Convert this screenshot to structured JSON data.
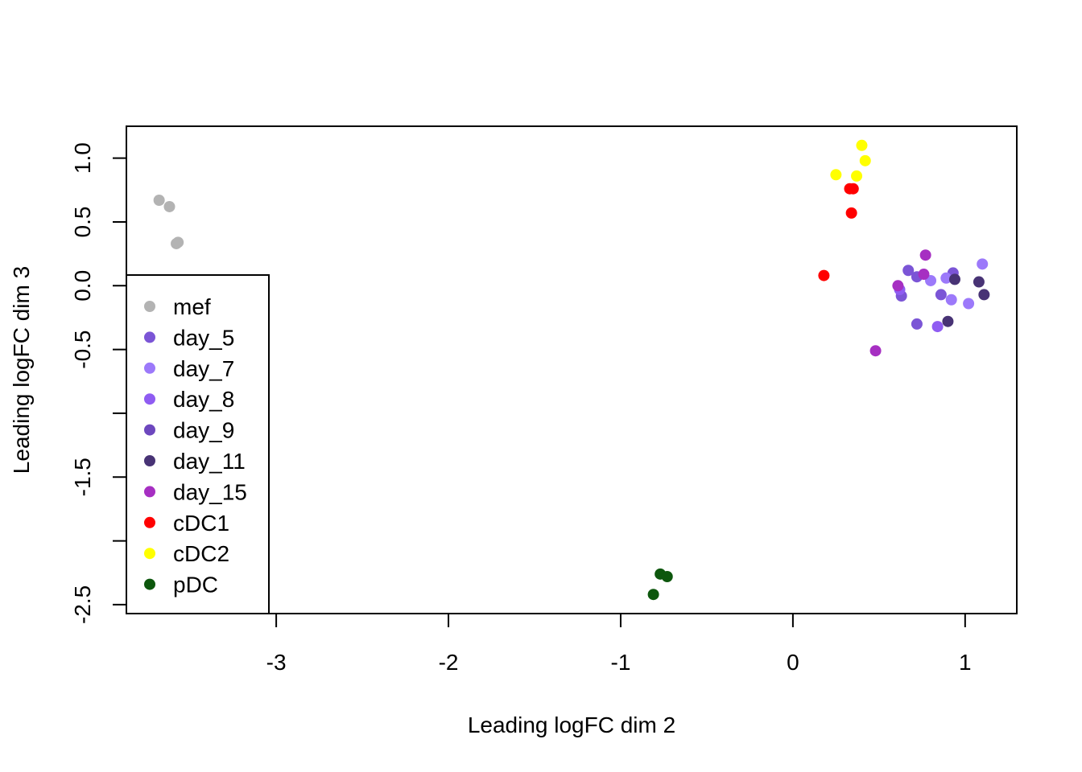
{
  "chart_data": {
    "type": "scatter",
    "title": "",
    "xlabel": "Leading logFC dim 2",
    "ylabel": "Leading logFC dim 3",
    "xlim": [
      -3.87,
      1.3
    ],
    "ylim": [
      -2.57,
      1.25
    ],
    "x_ticks": [
      -3,
      -2,
      -1,
      0,
      1
    ],
    "y_ticks": [
      1.0,
      0.5,
      0.0,
      -0.5,
      -1.0,
      -1.5,
      -2.0,
      -2.5
    ],
    "x_tick_labels": [
      "-3",
      "-2",
      "-1",
      "0",
      "1"
    ],
    "y_tick_labels": [
      "1.0",
      "0.5",
      "0.0",
      "-0.5",
      "",
      "-1.5",
      "",
      "-2.5"
    ],
    "grid": false,
    "legend_position": "left",
    "series": [
      {
        "name": "mef",
        "color": "#b3b3b3",
        "points": [
          [
            -3.68,
            0.67
          ],
          [
            -3.62,
            0.62
          ],
          [
            -3.57,
            0.34
          ],
          [
            -3.58,
            0.33
          ]
        ]
      },
      {
        "name": "day_5",
        "color": "#7b55d6",
        "points": [
          [
            0.67,
            0.12
          ],
          [
            0.72,
            0.07
          ],
          [
            0.63,
            -0.08
          ],
          [
            0.72,
            -0.3
          ],
          [
            0.86,
            -0.07
          ],
          [
            0.93,
            0.1
          ]
        ]
      },
      {
        "name": "day_7",
        "color": "#9c79fa",
        "points": [
          [
            0.8,
            0.04
          ],
          [
            0.89,
            0.06
          ],
          [
            0.92,
            -0.11
          ],
          [
            1.02,
            -0.14
          ],
          [
            1.1,
            0.17
          ]
        ]
      },
      {
        "name": "day_8",
        "color": "#8f5cf2",
        "points": [
          [
            0.62,
            -0.03
          ],
          [
            0.84,
            -0.32
          ]
        ]
      },
      {
        "name": "day_9",
        "color": "#6d47be",
        "points": []
      },
      {
        "name": "day_11",
        "color": "#483375",
        "points": [
          [
            0.94,
            0.05
          ],
          [
            0.9,
            -0.28
          ],
          [
            1.08,
            0.03
          ],
          [
            1.11,
            -0.07
          ]
        ]
      },
      {
        "name": "day_15",
        "color": "#a62fc2",
        "points": [
          [
            0.61,
            0.0
          ],
          [
            0.76,
            0.09
          ],
          [
            0.77,
            0.24
          ],
          [
            0.48,
            -0.51
          ]
        ]
      },
      {
        "name": "cDC1",
        "color": "#ff0000",
        "points": [
          [
            0.33,
            0.76
          ],
          [
            0.35,
            0.76
          ],
          [
            0.34,
            0.57
          ],
          [
            0.18,
            0.08
          ]
        ]
      },
      {
        "name": "cDC2",
        "color": "#ffff00",
        "points": [
          [
            0.4,
            1.1
          ],
          [
            0.42,
            0.98
          ],
          [
            0.25,
            0.87
          ],
          [
            0.37,
            0.86
          ]
        ]
      },
      {
        "name": "pDC",
        "color": "#0d570d",
        "points": [
          [
            -0.77,
            -2.26
          ],
          [
            -0.73,
            -2.28
          ],
          [
            -0.81,
            -2.42
          ]
        ]
      }
    ]
  }
}
